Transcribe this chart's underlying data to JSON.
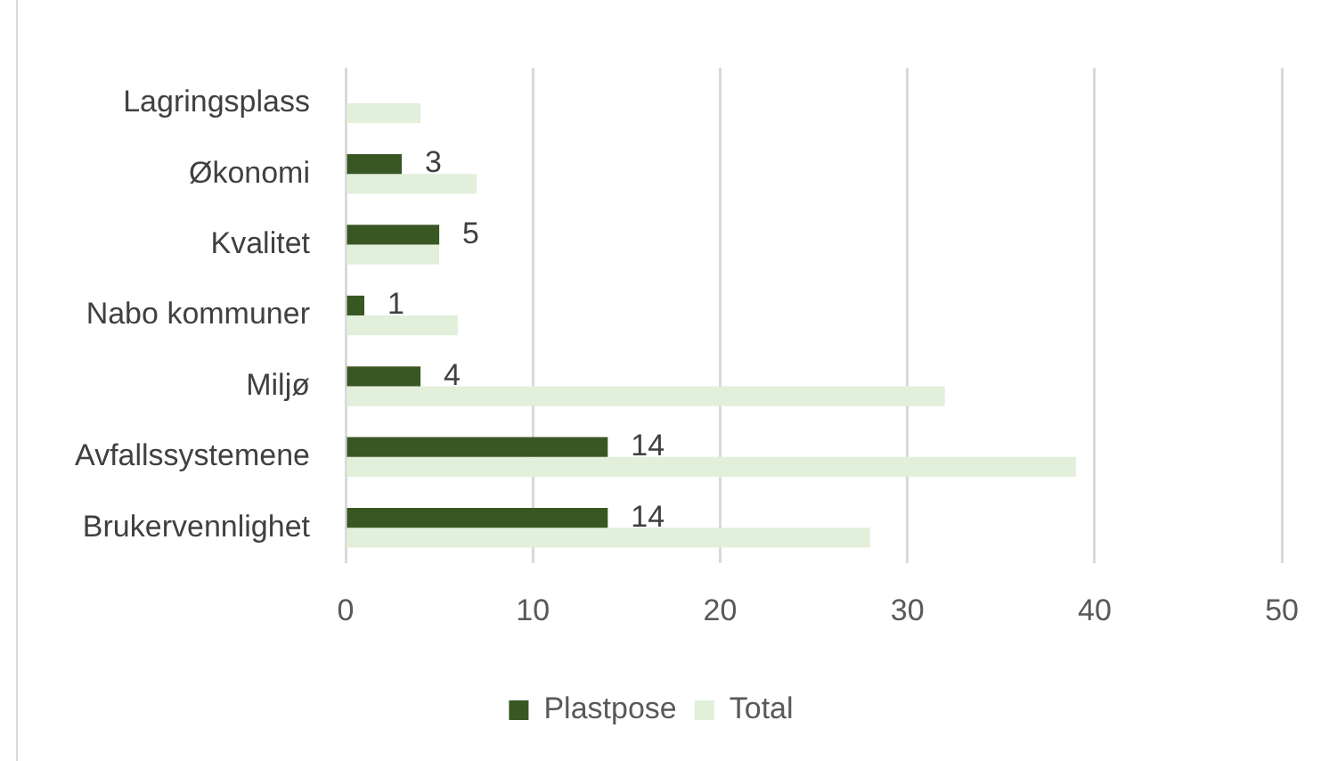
{
  "chart_data": {
    "type": "bar",
    "orientation": "horizontal",
    "categories": [
      "Lagringsplass",
      "Økonomi",
      "Kvalitet",
      "Nabo kommuner",
      "Miljø",
      "Avfallssystemene",
      "Brukervennlighet"
    ],
    "series": [
      {
        "name": "Plastpose",
        "color": "#385723",
        "values": [
          null,
          3,
          5,
          1,
          4,
          14,
          14
        ],
        "value_labels": [
          null,
          "3",
          "5",
          "1",
          "4",
          "14",
          "14"
        ]
      },
      {
        "name": "Total",
        "color": "#e2efda",
        "values": [
          4,
          7,
          5,
          6,
          32,
          39,
          28
        ]
      }
    ],
    "xlim": [
      0,
      50
    ],
    "xticks": [
      0,
      10,
      20,
      30,
      40,
      50
    ],
    "grid": "x",
    "legend": "bottom"
  }
}
